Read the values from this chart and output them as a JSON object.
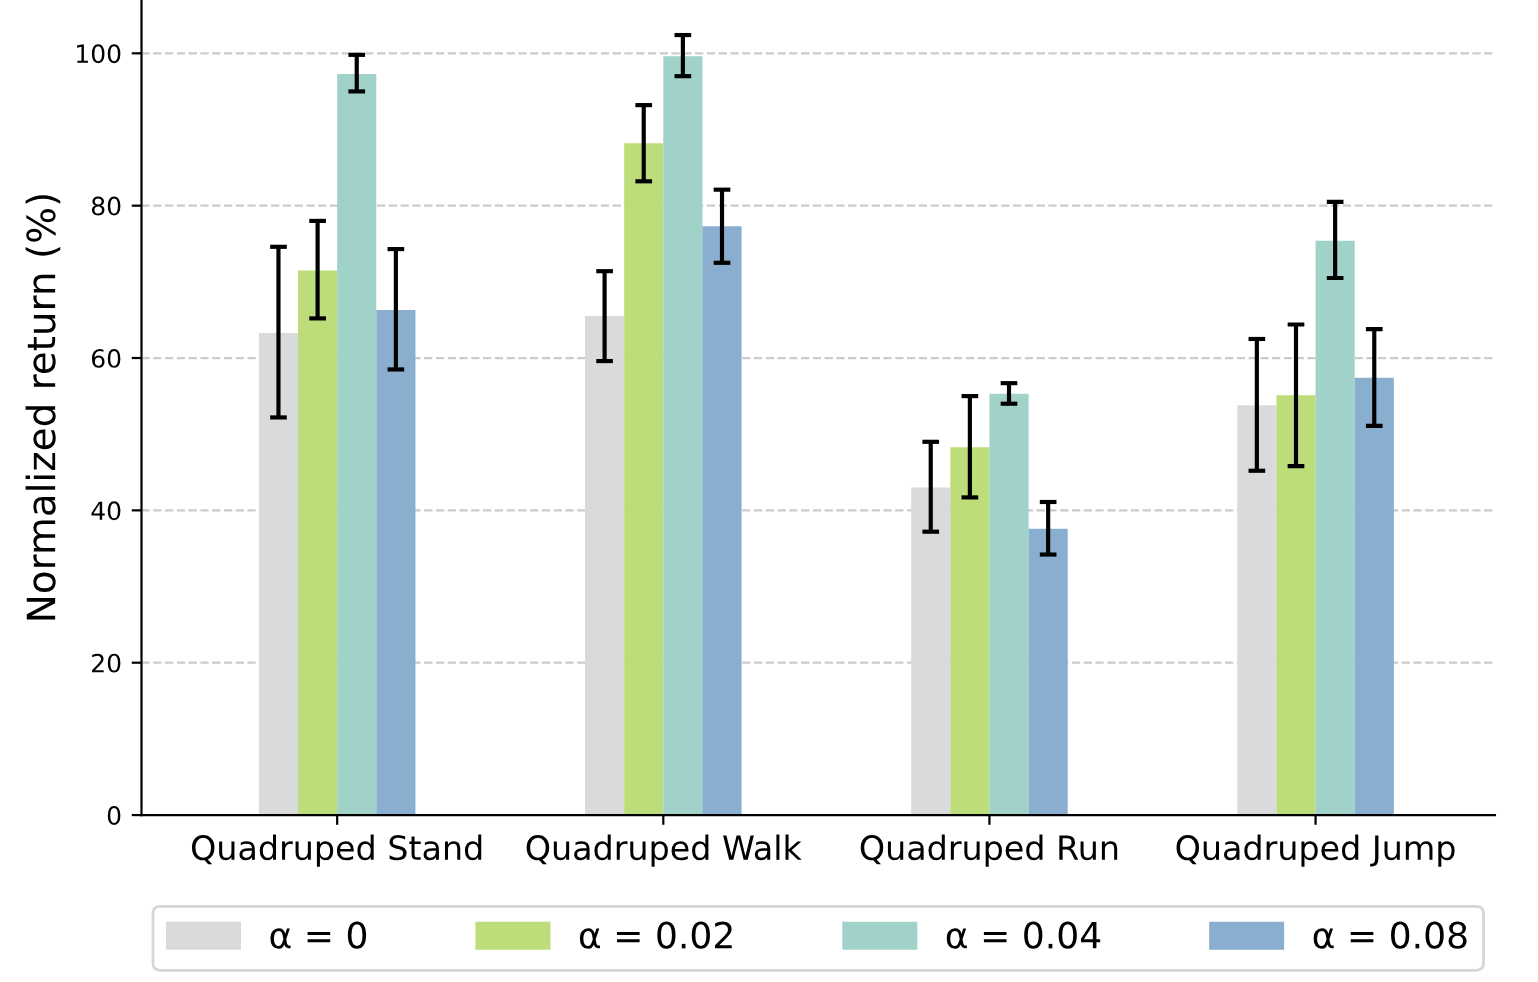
{
  "chart_data": {
    "type": "bar",
    "ylabel": "Normalized return (%)",
    "categories": [
      "Quadruped Stand",
      "Quadruped Walk",
      "Quadruped Run",
      "Quadruped Jump"
    ],
    "series": [
      {
        "name": "α = 0",
        "color": "#d9dadb",
        "values": [
          63.3,
          65.5,
          43.0,
          53.8
        ],
        "errors": [
          [
            52.2,
            74.6
          ],
          [
            59.6,
            71.4
          ],
          [
            37.2,
            49.0
          ],
          [
            45.2,
            62.5
          ]
        ]
      },
      {
        "name": "α = 0.02",
        "color": "#bddc7a",
        "values": [
          71.5,
          88.2,
          48.3,
          55.1
        ],
        "errors": [
          [
            65.2,
            78.0
          ],
          [
            83.2,
            93.2
          ],
          [
            41.7,
            55.0
          ],
          [
            45.8,
            64.4
          ]
        ]
      },
      {
        "name": "α = 0.04",
        "color": "#a0d2ca",
        "values": [
          97.3,
          99.6,
          55.3,
          75.4
        ],
        "errors": [
          [
            95.0,
            99.8
          ],
          [
            97.0,
            102.4
          ],
          [
            54.0,
            56.7
          ],
          [
            70.5,
            80.5
          ]
        ]
      },
      {
        "name": "α = 0.08",
        "color": "#89aed0",
        "values": [
          66.3,
          77.3,
          37.6,
          57.4
        ],
        "errors": [
          [
            58.5,
            74.3
          ],
          [
            72.5,
            82.1
          ],
          [
            34.2,
            41.1
          ],
          [
            51.1,
            63.8
          ]
        ]
      }
    ],
    "ylim": [
      0,
      107
    ],
    "yticks": [
      0,
      20,
      40,
      60,
      80,
      100
    ],
    "grid": "y",
    "legend": "bottom"
  }
}
